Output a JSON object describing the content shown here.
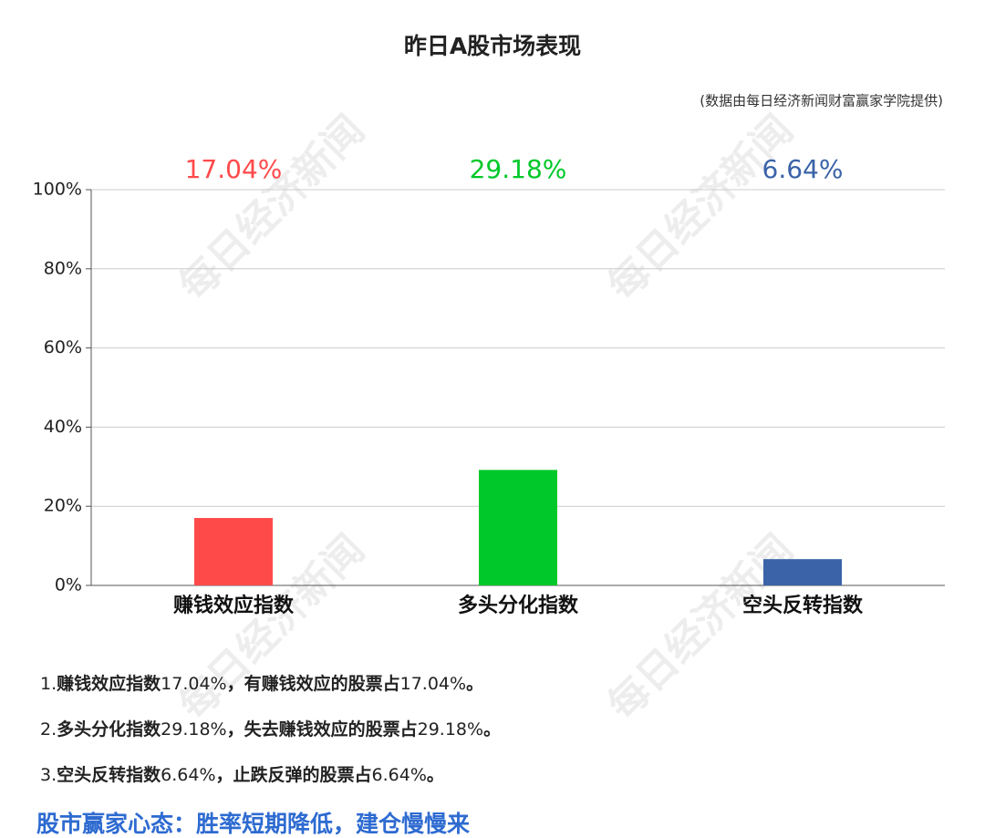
{
  "chart_data": {
    "type": "bar",
    "title": "昨日A股市场表现",
    "subtitle": "(数据由每日经济新闻财富赢家学院提供)",
    "categories": [
      "赚钱效应指数",
      "多头分化指数",
      "空头反转指数"
    ],
    "values": [
      17.04,
      29.18,
      6.64
    ],
    "value_labels": [
      "17.04%",
      "29.18%",
      "6.64%"
    ],
    "colors": [
      "#ff4a4a",
      "#00c82a",
      "#3a63a8"
    ],
    "ylim": [
      0,
      100
    ],
    "yticks": [
      {
        "value": 0,
        "label": "0%"
      },
      {
        "value": 20,
        "label": "20%"
      },
      {
        "value": 40,
        "label": "40%"
      },
      {
        "value": 60,
        "label": "60%"
      },
      {
        "value": 80,
        "label": "80%"
      },
      {
        "value": 100,
        "label": "100%"
      }
    ],
    "grid": true
  },
  "watermark": "每日经济新闻",
  "notes": [
    [
      "1.",
      "赚钱效应指数",
      "17.04%",
      "，有赚钱效应的股票占",
      "17.04%",
      "。"
    ],
    [
      "2.",
      "多头分化指数",
      "29.18%",
      "，失去赚钱效应的股票占",
      "29.18%",
      "。"
    ],
    [
      "3.",
      "空头反转指数",
      "6.64%",
      "，止跌反弹的股票占",
      "6.64%",
      "。"
    ]
  ],
  "footer": "股市赢家心态：胜率短期降低，建仓慢慢来"
}
